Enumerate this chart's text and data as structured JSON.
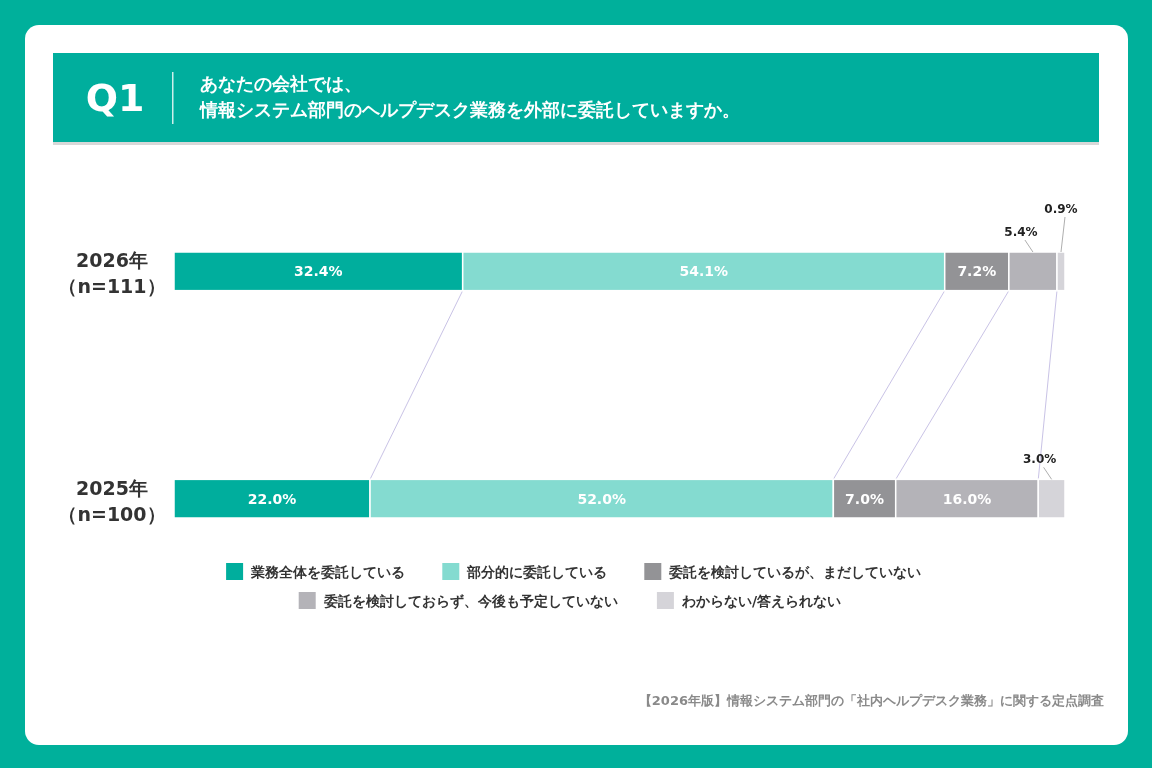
{
  "chart_data": {
    "type": "bar",
    "orientation": "horizontal",
    "stacked": true,
    "title": "Q1",
    "subtitle": "あなたの会社では、情報システム部門のヘルプデスク業務を外部に委託していますか。",
    "categories": [
      "2026年（n=111）",
      "2025年（n=100）"
    ],
    "series": [
      {
        "name": "業務全体を委託している",
        "color": "#00ae9d",
        "values": [
          32.4,
          22.0
        ],
        "value_labels": [
          "32.4%",
          "22.0%"
        ]
      },
      {
        "name": "部分的に委託している",
        "color": "#84dbd0",
        "values": [
          54.1,
          52.0
        ],
        "value_labels": [
          "54.1%",
          "52.0%"
        ]
      },
      {
        "name": "委託を検討しているが、まだしていない",
        "color": "#939396",
        "values": [
          7.2,
          7.0
        ],
        "value_labels": [
          "7.2%",
          "7.0%"
        ]
      },
      {
        "name": "委託を検討しておらず、今後も予定していない",
        "color": "#b4b3b8",
        "values": [
          5.4,
          16.0
        ],
        "value_labels": [
          "5.4%",
          "16.0%"
        ]
      },
      {
        "name": "わからない/答えられない",
        "color": "#d5d4d9",
        "values": [
          0.9,
          3.0
        ],
        "value_labels": [
          "0.9%",
          "3.0%"
        ]
      }
    ],
    "legend": "bottom",
    "annotations": [
      "【2026年版】情報システム部門の「社内ヘルプデスク業務」に関する定点調査"
    ]
  }
}
